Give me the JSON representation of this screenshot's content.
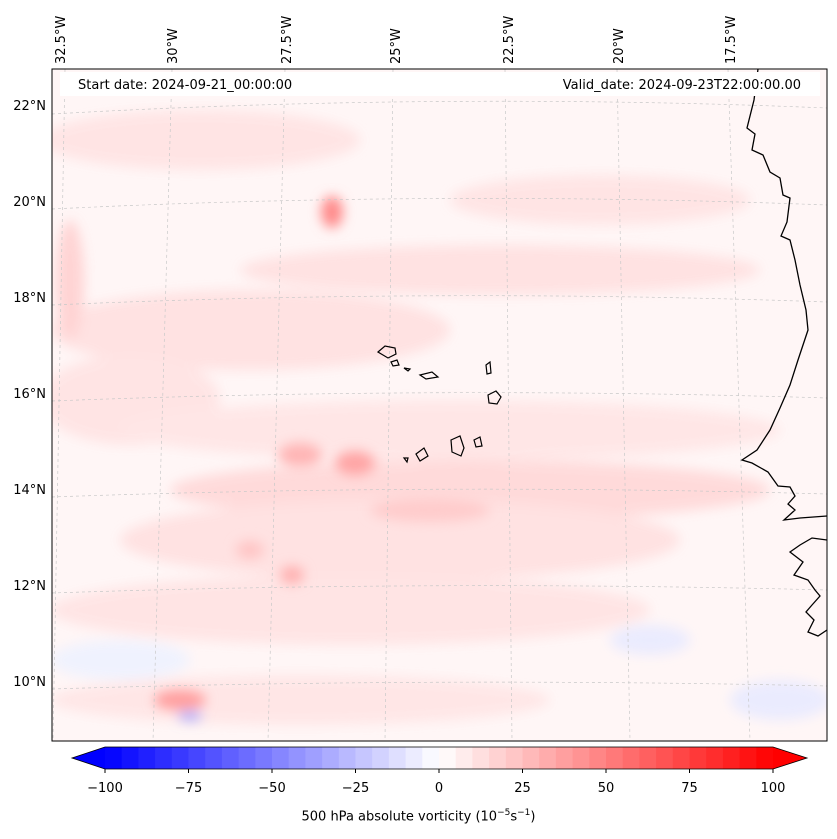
{
  "header": {
    "start_date": "Start date: 2024-09-21_00:00:00",
    "valid_date": "Valid_date: 2024-09-23T22:00:00.00"
  },
  "lon_labels": [
    "32.5°W",
    "30°W",
    "27.5°W",
    "25°W",
    "22.5°W",
    "20°W",
    "17.5°W"
  ],
  "lat_labels": [
    "22°N",
    "20°N",
    "18°N",
    "16°N",
    "14°N",
    "12°N",
    "10°N"
  ],
  "colorbar": {
    "ticks": [
      "−100",
      "−75",
      "−50",
      "−25",
      "0",
      "25",
      "50",
      "75",
      "100"
    ],
    "label_main": "500 hPa absolute vorticity (10",
    "label_exp1": "−5",
    "label_mid": "s",
    "label_exp2": "−1",
    "label_end": ")",
    "min": -100,
    "max": 100,
    "negative_color": "#0000ff",
    "positive_color": "#ff0000"
  },
  "colors": {
    "background_tint": "#fff6f6",
    "coastline": "#000000",
    "grid": "#c8c8c8"
  }
}
